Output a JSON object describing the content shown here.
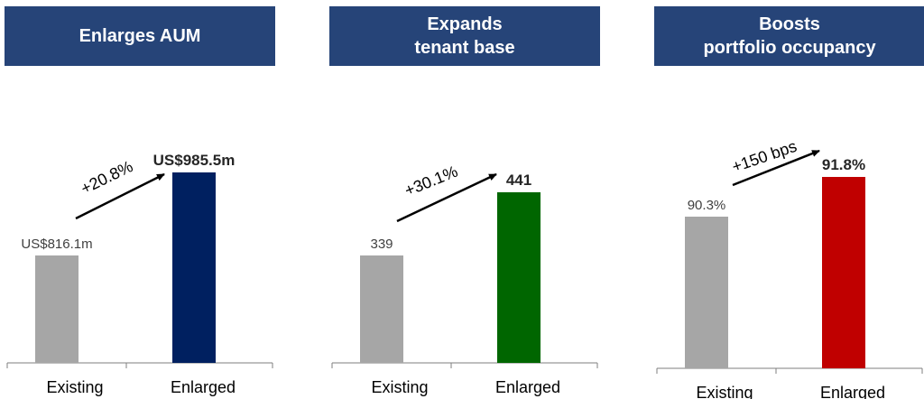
{
  "panels": [
    {
      "title_lines": [
        "Enlarges AUM"
      ],
      "bars": [
        {
          "category": "Existing",
          "value": 816.1,
          "label": "US$816.1m",
          "color": "#a6a6a6",
          "bold": false
        },
        {
          "category": "Enlarged",
          "value": 985.5,
          "label": "US$985.5m",
          "color": "#002060",
          "bold": true
        }
      ],
      "change_label": "+20.8%"
    },
    {
      "title_lines": [
        "Expands",
        "tenant base"
      ],
      "bars": [
        {
          "category": "Existing",
          "value": 339,
          "label": "339",
          "color": "#a6a6a6",
          "bold": false
        },
        {
          "category": "Enlarged",
          "value": 441,
          "label": "441",
          "color": "#006600",
          "bold": true
        }
      ],
      "change_label": "+30.1%"
    },
    {
      "title_lines": [
        "Boosts",
        "portfolio occupancy"
      ],
      "bars": [
        {
          "category": "Existing",
          "value": 90.3,
          "label": "90.3%",
          "color": "#a6a6a6",
          "bold": false
        },
        {
          "category": "Enlarged",
          "value": 91.8,
          "label": "91.8%",
          "color": "#c00000",
          "bold": true
        }
      ],
      "change_label": "+150 bps"
    }
  ],
  "chart_data": [
    {
      "type": "bar",
      "title": "Enlarges AUM",
      "categories": [
        "Existing",
        "Enlarged"
      ],
      "values": [
        816.1,
        985.5
      ],
      "data_labels": [
        "US$816.1m",
        "US$985.5m"
      ],
      "annotation": "+20.8%"
    },
    {
      "type": "bar",
      "title": "Expands tenant base",
      "categories": [
        "Existing",
        "Enlarged"
      ],
      "values": [
        339,
        441
      ],
      "data_labels": [
        "339",
        "441"
      ],
      "annotation": "+30.1%"
    },
    {
      "type": "bar",
      "title": "Boosts portfolio occupancy",
      "categories": [
        "Existing",
        "Enlarged"
      ],
      "values": [
        90.3,
        91.8
      ],
      "data_labels": [
        "90.3%",
        "91.8%"
      ],
      "annotation": "+150 bps"
    }
  ],
  "colors": {
    "header_bg": "#264478",
    "existing": "#a6a6a6",
    "axis": "#7f7f7f"
  }
}
